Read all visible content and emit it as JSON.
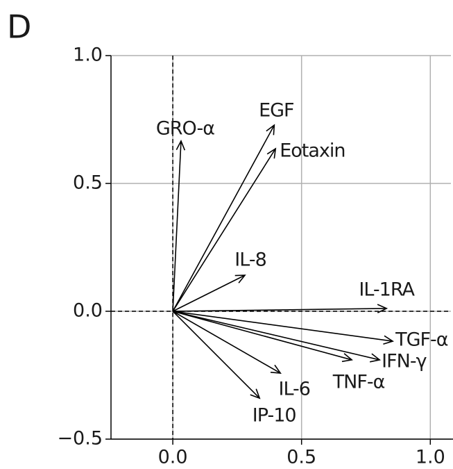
{
  "chart_data": {
    "type": "biplot",
    "panel_label": "D",
    "vectors": [
      {
        "name": "GRO-α",
        "x": 0.032,
        "y": 0.666
      },
      {
        "name": "EGF",
        "x": 0.394,
        "y": 0.728
      },
      {
        "name": "Eotaxin",
        "x": 0.399,
        "y": 0.636
      },
      {
        "name": "IL-8",
        "x": 0.28,
        "y": 0.141
      },
      {
        "name": "IL-1RA",
        "x": 0.83,
        "y": 0.011
      },
      {
        "name": "TGF-α",
        "x": 0.854,
        "y": -0.117
      },
      {
        "name": "IFN-γ",
        "x": 0.803,
        "y": -0.19
      },
      {
        "name": "TNF-α",
        "x": 0.695,
        "y": -0.19
      },
      {
        "name": "IL-6",
        "x": 0.418,
        "y": -0.242
      },
      {
        "name": "IP-10",
        "x": 0.337,
        "y": -0.34
      }
    ],
    "color": "#000000",
    "xlim": [
      -0.24,
      1.08
    ],
    "ylim": [
      -0.5,
      1.0
    ],
    "xticks": [
      {
        "value": 0,
        "label": "0.0"
      },
      {
        "value": 0.5,
        "label": "0.5"
      },
      {
        "value": 1,
        "label": "1.0"
      }
    ],
    "yticks": [
      {
        "value": -0.5,
        "label": "−0.5"
      },
      {
        "value": 0,
        "label": "0.0"
      },
      {
        "value": 0.5,
        "label": "0.5"
      },
      {
        "value": 1,
        "label": "1.0"
      }
    ],
    "grid": true
  }
}
